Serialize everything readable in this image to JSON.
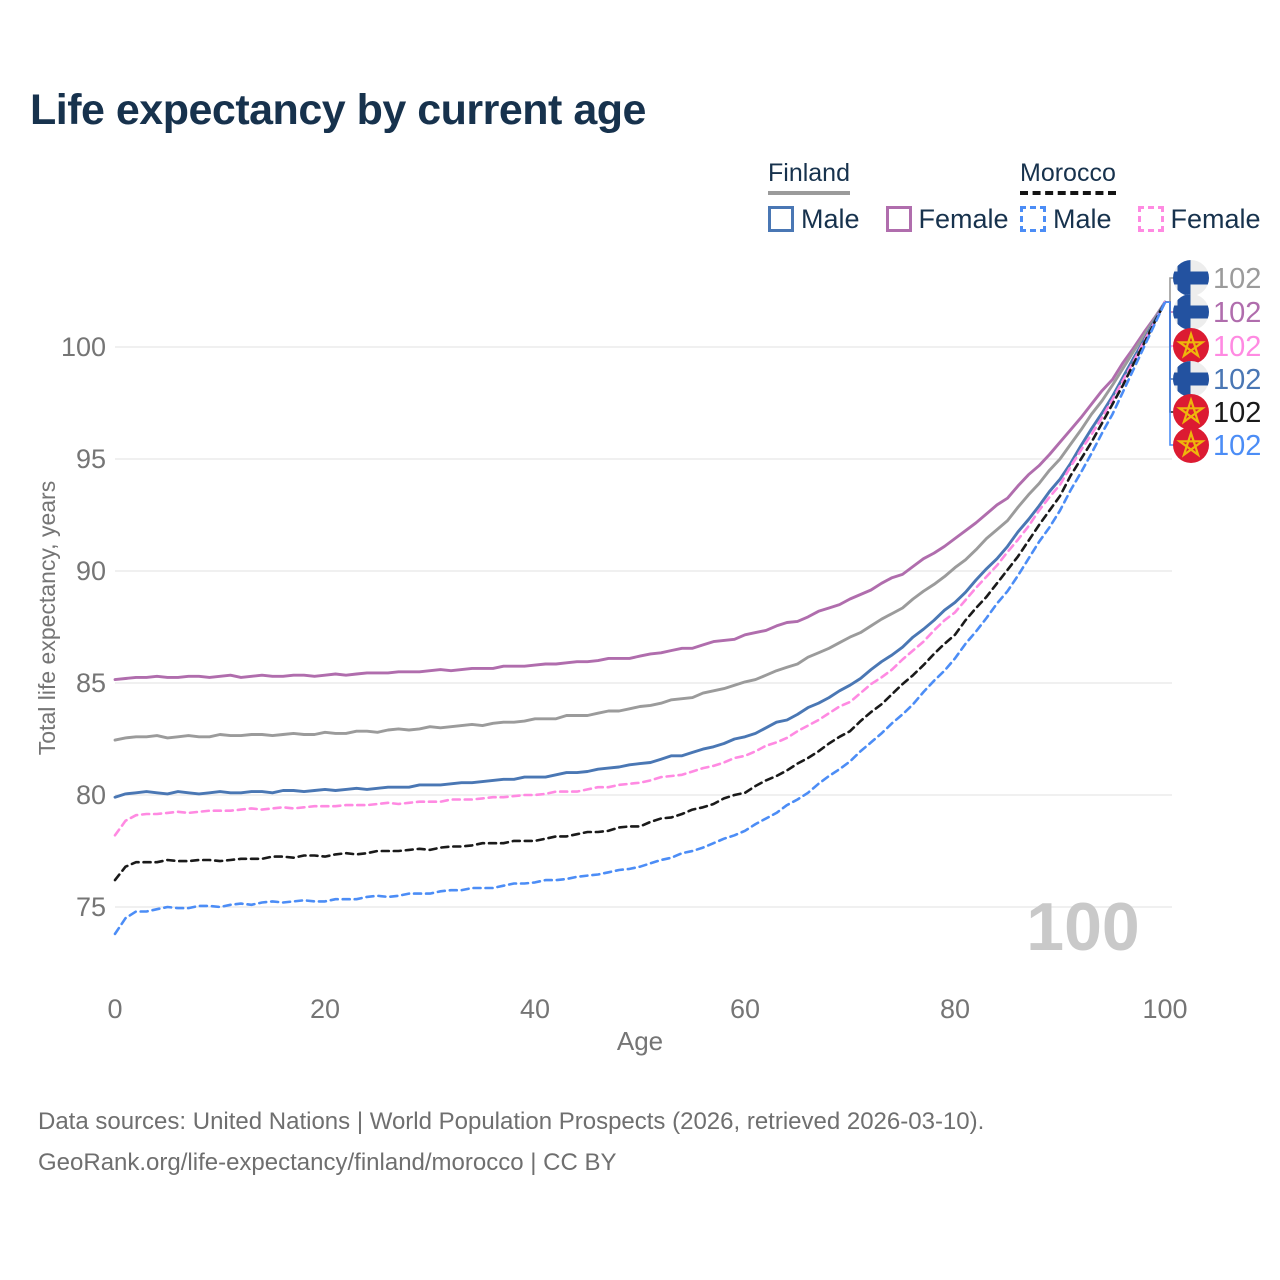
{
  "title": "Life expectancy by current age",
  "colors": {
    "title_text": "#17324d",
    "axis_text": "#757575",
    "gridline": "#e7e7e7",
    "watermark": "#c9c9c9",
    "footer_text": "#6f6f6f",
    "finland_flag_blue": "#2352a0",
    "finland_flag_bg": "#ededed",
    "morocco_flag_red": "#dc1b32",
    "morocco_flag_star": "#eeb60c"
  },
  "legend": {
    "groups": [
      {
        "name": "Finland",
        "line_style": "solid",
        "underline_color": "#9b9b9b",
        "items": [
          {
            "label": "Male",
            "color": "#4a77b4"
          },
          {
            "label": "Female",
            "color": "#b06dad"
          }
        ]
      },
      {
        "name": "Morocco",
        "line_style": "dashed",
        "underline_color": "#141414",
        "items": [
          {
            "label": "Male",
            "color": "#4c8df6"
          },
          {
            "label": "Female",
            "color": "#ff8ae2"
          }
        ]
      }
    ]
  },
  "chart_data": {
    "type": "line",
    "title": "Life expectancy by current age",
    "xlabel": "Age",
    "ylabel": "Total life expectancy, years",
    "xlim": [
      0,
      100
    ],
    "ylim": [
      73.5,
      102.5
    ],
    "xticks": [
      0,
      20,
      40,
      60,
      80,
      100
    ],
    "yticks": [
      75,
      80,
      85,
      90,
      95,
      100
    ],
    "grid": "horizontal",
    "legend_position": "top-right",
    "watermark": "100",
    "anchor_ages": [
      0,
      1,
      2,
      5,
      10,
      15,
      20,
      25,
      30,
      35,
      40,
      45,
      50,
      55,
      60,
      65,
      70,
      75,
      80,
      85,
      90,
      95,
      100
    ],
    "series": [
      {
        "name": "Finland Female",
        "country": "Finland",
        "sex": "Female",
        "color": "#b06dad",
        "dashed": false,
        "values": [
          85.15,
          85.2,
          85.25,
          85.25,
          85.3,
          85.3,
          85.35,
          85.45,
          85.55,
          85.65,
          85.8,
          85.95,
          86.2,
          86.6,
          87.1,
          87.8,
          88.7,
          89.9,
          91.4,
          93.3,
          95.7,
          98.6,
          102
        ]
      },
      {
        "name": "Finland Both sexes",
        "country": "Finland",
        "sex": "Both",
        "color": "#9b9b9b",
        "dashed": false,
        "values": [
          82.45,
          82.55,
          82.6,
          82.6,
          82.65,
          82.7,
          82.75,
          82.85,
          83.0,
          83.15,
          83.35,
          83.6,
          83.9,
          84.4,
          85.0,
          85.9,
          87.0,
          88.4,
          90.1,
          92.3,
          95.0,
          98.3,
          102
        ]
      },
      {
        "name": "Finland Male",
        "country": "Finland",
        "sex": "Male",
        "color": "#4a77b4",
        "dashed": false,
        "values": [
          79.9,
          80.05,
          80.1,
          80.1,
          80.1,
          80.15,
          80.2,
          80.3,
          80.45,
          80.6,
          80.8,
          81.05,
          81.4,
          81.9,
          82.6,
          83.6,
          84.9,
          86.6,
          88.6,
          91.1,
          94.1,
          97.8,
          102
        ]
      },
      {
        "name": "Morocco Female",
        "country": "Morocco",
        "sex": "Female",
        "color": "#ff8ae2",
        "dashed": true,
        "values": [
          78.2,
          78.85,
          79.1,
          79.2,
          79.3,
          79.4,
          79.5,
          79.6,
          79.7,
          79.85,
          80.0,
          80.25,
          80.55,
          81.05,
          81.75,
          82.8,
          84.2,
          86.0,
          88.2,
          90.8,
          93.9,
          97.6,
          102
        ]
      },
      {
        "name": "Morocco Both sexes",
        "country": "Morocco",
        "sex": "Both",
        "color": "#1a1a1a",
        "dashed": true,
        "values": [
          76.2,
          76.8,
          77.0,
          77.05,
          77.1,
          77.2,
          77.3,
          77.45,
          77.6,
          77.8,
          78.0,
          78.3,
          78.65,
          79.3,
          80.15,
          81.35,
          82.9,
          84.9,
          87.2,
          90.0,
          93.4,
          97.4,
          102
        ]
      },
      {
        "name": "Morocco Male",
        "country": "Morocco",
        "sex": "Male",
        "color": "#4c8df6",
        "dashed": true,
        "values": [
          73.8,
          74.5,
          74.8,
          74.95,
          75.05,
          75.2,
          75.3,
          75.45,
          75.65,
          75.85,
          76.1,
          76.4,
          76.8,
          77.5,
          78.4,
          79.8,
          81.5,
          83.6,
          86.1,
          89.1,
          92.7,
          97.0,
          102
        ]
      }
    ],
    "end_labels": [
      {
        "value": "102",
        "flag": "finland",
        "color": "#9b9b9b",
        "series": "Finland Both sexes"
      },
      {
        "value": "102",
        "flag": "finland",
        "color": "#b06dad",
        "series": "Finland Female"
      },
      {
        "value": "102",
        "flag": "morocco",
        "color": "#ff8ae2",
        "series": "Morocco Female"
      },
      {
        "value": "102",
        "flag": "finland",
        "color": "#4a77b4",
        "series": "Finland Male"
      },
      {
        "value": "102",
        "flag": "morocco",
        "color": "#1a1a1a",
        "series": "Morocco Both sexes"
      },
      {
        "value": "102",
        "flag": "morocco",
        "color": "#4c8df6",
        "series": "Morocco Male"
      }
    ]
  },
  "footer": {
    "line1": "Data sources: United Nations | World Population Prospects (2026, retrieved 2026-03-10).",
    "line2": "GeoRank.org/life-expectancy/finland/morocco | CC BY"
  }
}
